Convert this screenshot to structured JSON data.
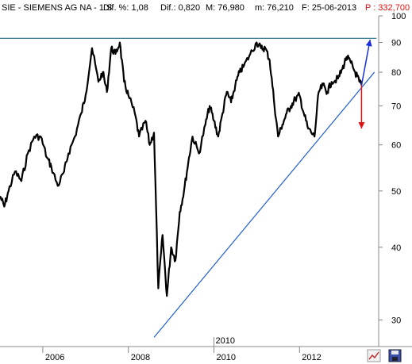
{
  "header": {
    "symbol": "SIE - SIEMENS AG NA - 1 S",
    "dif_pct": "Dif. %: 1,08",
    "dif": "Dif.: 0,820",
    "max": "M: 76,980",
    "min": "m: 76,210",
    "date": "F: 25-06-2013",
    "price": "P : 332,700"
  },
  "colors": {
    "price_line": "#000000",
    "trendline": "#1f5fd0",
    "resistance": "#1f6a8a",
    "arrow_up": "#1a2fd8",
    "arrow_down": "#e01010",
    "header_price": "#e01010",
    "background": "#ffffff",
    "axis": "#888888"
  },
  "icons": [
    "chart-type-icon",
    "save-icon"
  ],
  "chart_data": {
    "type": "line",
    "scale": "log",
    "ylim": [
      27,
      100
    ],
    "xlim": [
      2005.0,
      2013.85
    ],
    "y_ticks": [
      100,
      90,
      80,
      70,
      60,
      50,
      40,
      30
    ],
    "y_tick_labels": [
      "100",
      "90",
      "80",
      "70",
      "60",
      "50",
      "40",
      "30"
    ],
    "x_ticks": [
      2006,
      2008,
      2010,
      2012
    ],
    "x_tick_labels": [
      "2006",
      "2008",
      "2010",
      "2012"
    ],
    "x_marker": {
      "x": 2010,
      "label": "2010"
    },
    "grid": false,
    "series": [
      {
        "x": [
          2005.0,
          2005.1,
          2005.2,
          2005.35,
          2005.5,
          2005.65,
          2005.8,
          2005.95,
          2006.1,
          2006.2,
          2006.35,
          2006.5,
          2006.6,
          2006.75,
          2006.9,
          2007.0,
          2007.15,
          2007.3,
          2007.4,
          2007.5,
          2007.6,
          2007.7,
          2007.8,
          2007.9,
          2008.0,
          2008.15,
          2008.25,
          2008.4,
          2008.5,
          2008.6,
          2008.7,
          2008.8,
          2008.9,
          2009.0,
          2009.1,
          2009.2,
          2009.3,
          2009.4,
          2009.5,
          2009.65,
          2009.8,
          2009.9,
          2010.0,
          2010.1,
          2010.2,
          2010.3,
          2010.4,
          2010.5,
          2010.6,
          2010.7,
          2010.85,
          2011.0,
          2011.1,
          2011.2,
          2011.3,
          2011.4,
          2011.5,
          2011.6,
          2011.7,
          2011.8,
          2011.9,
          2012.0,
          2012.1,
          2012.2,
          2012.35,
          2012.45,
          2012.55,
          2012.65,
          2012.75,
          2012.9,
          2013.0,
          2013.1,
          2013.2,
          2013.3,
          2013.4,
          2013.45
        ],
        "y": [
          49,
          47,
          50,
          54,
          52,
          58,
          62,
          62,
          57,
          55,
          51,
          54,
          58,
          62,
          68,
          73,
          88,
          77,
          80,
          74,
          88,
          86,
          90,
          77,
          73,
          68,
          62,
          66,
          60,
          63,
          34,
          42,
          33,
          40,
          38,
          46,
          50,
          56,
          62,
          58,
          65,
          70,
          66,
          62,
          68,
          74,
          71,
          76,
          80,
          82,
          86,
          90,
          88,
          88,
          84,
          72,
          62,
          65,
          68,
          70,
          72,
          73,
          68,
          64,
          62,
          74,
          76,
          74,
          77,
          78,
          81,
          85,
          83,
          80,
          77,
          76
        ]
      }
    ],
    "annotations": {
      "trendline": {
        "from": [
          2008.6,
          28
        ],
        "to": [
          2013.75,
          80
        ]
      },
      "resistance": {
        "from": [
          2005.0,
          91.5
        ],
        "to": [
          2013.8,
          91.5
        ]
      },
      "arrow_up": {
        "from": [
          2013.45,
          76
        ],
        "to": [
          2013.65,
          91
        ]
      },
      "arrow_down": {
        "from": [
          2013.45,
          76
        ],
        "to": [
          2013.45,
          64
        ]
      }
    }
  }
}
